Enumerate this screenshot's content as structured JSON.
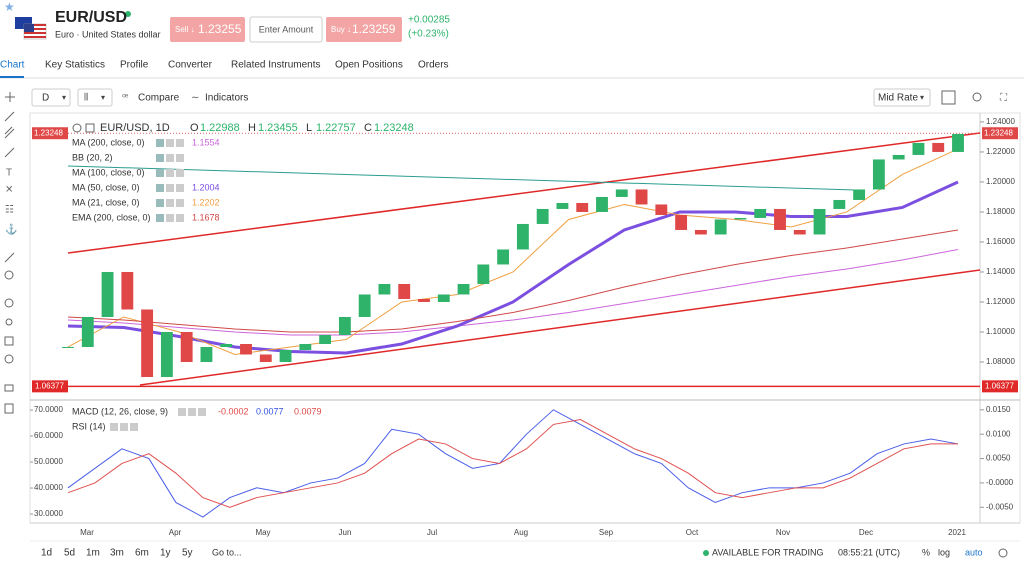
{
  "header": {
    "symbol": "EUR/USD",
    "name": "Euro · United States dollar",
    "sell_label": "Sell ↓",
    "sell_price": 1.23255,
    "amount_placeholder": "Enter Amount",
    "buy_label": "Buy ↓",
    "buy_price": 1.23259,
    "change": "+0.00285",
    "change_pct": "(+0.23%)"
  },
  "tabs": [
    "Chart",
    "Key Statistics",
    "Profile",
    "Converter",
    "Related Instruments",
    "Open Positions",
    "Orders"
  ],
  "toolbar": {
    "interval": "D",
    "compare": "Compare",
    "indicators": "Indicators",
    "price_type": "Mid Rate"
  },
  "footer": {
    "ranges": [
      "1d",
      "5d",
      "1m",
      "3m",
      "6m",
      "1y",
      "5y"
    ],
    "goto": "Go to...",
    "status": "AVAILABLE FOR TRADING",
    "time": "08:55:21 (UTC)",
    "percent": "%",
    "log": "log",
    "auto": "auto"
  },
  "chart_data": [
    {
      "type": "candlestick",
      "title": "EUR/USD, 1D",
      "ohlc": [
        {
          "label": "O",
          "value": 1.22988
        },
        {
          "label": "H",
          "value": 1.23455
        },
        {
          "label": "L",
          "value": 1.22757
        },
        {
          "label": "C",
          "value": 1.23248
        }
      ],
      "last_price": 1.23248,
      "level": 1.06377,
      "up_color": "#2fb36b",
      "down_color": "#e04848",
      "closes": [
        1.09,
        1.11,
        1.14,
        1.115,
        1.07,
        1.1,
        1.08,
        1.09,
        1.092,
        1.085,
        1.08,
        1.088,
        1.092,
        1.098,
        1.11,
        1.125,
        1.132,
        1.122,
        1.12,
        1.125,
        1.132,
        1.145,
        1.155,
        1.172,
        1.182,
        1.186,
        1.18,
        1.19,
        1.195,
        1.185,
        1.178,
        1.168,
        1.165,
        1.175,
        1.176,
        1.182,
        1.168,
        1.165,
        1.182,
        1.188,
        1.195,
        1.215,
        1.218,
        1.226,
        1.22,
        1.232
      ],
      "indicators": [
        {
          "name": "MA (200, close, 0)",
          "value": 1.1554,
          "color": "#cc66dd",
          "values": [
            1.108,
            1.106,
            1.103,
            1.1,
            1.098,
            1.098,
            1.1,
            1.104,
            1.108,
            1.113,
            1.119,
            1.125,
            1.131,
            1.137,
            1.142,
            1.148,
            1.155
          ]
        },
        {
          "name": "BB (20, 2)"
        },
        {
          "name": "MA (100, close, 0)"
        },
        {
          "name": "MA (50, close, 0)",
          "value": 1.2004,
          "color": "#7b4fe0",
          "values": [
            1.104,
            1.103,
            1.097,
            1.09,
            1.087,
            1.086,
            1.092,
            1.104,
            1.12,
            1.145,
            1.168,
            1.18,
            1.18,
            1.177,
            1.177,
            1.183,
            1.2
          ]
        },
        {
          "name": "MA (21, close, 0)",
          "value": 1.2202,
          "color": "#f0a040",
          "values": [
            1.09,
            1.11,
            1.1,
            1.085,
            1.09,
            1.095,
            1.12,
            1.125,
            1.14,
            1.175,
            1.185,
            1.178,
            1.175,
            1.17,
            1.18,
            1.205,
            1.222
          ]
        },
        {
          "name": "EMA (200, close, 0)",
          "value": 1.1678,
          "color": "#d04848",
          "values": [
            1.11,
            1.108,
            1.105,
            1.102,
            1.1,
            1.1,
            1.102,
            1.107,
            1.113,
            1.121,
            1.13,
            1.138,
            1.145,
            1.151,
            1.156,
            1.162,
            1.168
          ]
        }
      ],
      "x_labels": [
        "Mar",
        "Apr",
        "May",
        "Jun",
        "Jul",
        "Aug",
        "Sep",
        "Oct",
        "Nov",
        "Dec",
        "2021"
      ],
      "ylim": [
        1.056,
        1.2453
      ],
      "yticks": [
        {
          "value": 1.24,
          "label": "1.24000"
        },
        {
          "value": 1.22,
          "label": "1.22000"
        },
        {
          "value": 1.2,
          "label": "1.20000"
        },
        {
          "value": 1.18,
          "label": "1.18000"
        },
        {
          "value": 1.16,
          "label": "1.16000"
        },
        {
          "value": 1.14,
          "label": "1.14000"
        },
        {
          "value": 1.12,
          "label": "1.12000"
        },
        {
          "value": 1.1,
          "label": "1.10000"
        },
        {
          "value": 1.08,
          "label": "1.08000"
        }
      ]
    },
    {
      "type": "line",
      "indicators": [
        {
          "name": "MACD (12, 26, close, 9)",
          "values_shown": [
            {
              "value": -0.0002,
              "color": "#e04848"
            },
            {
              "value": 0.0077,
              "color": "#3355dd"
            },
            {
              "value": 0.0079,
              "color": "#e04848"
            }
          ]
        },
        {
          "name": "RSI (14)"
        }
      ],
      "series": [
        {
          "color": "#4a5ee8",
          "axis": "y2",
          "values": [
            -0.001,
            0.003,
            0.007,
            0.005,
            -0.004,
            -0.007,
            -0.003,
            -0.001,
            -0.002,
            0.0,
            0.001,
            0.004,
            0.011,
            0.01,
            0.006,
            0.003,
            0.004,
            0.01,
            0.015,
            0.012,
            0.009,
            0.006,
            0.004,
            -0.001,
            -0.004,
            -0.002,
            -0.001,
            -0.001,
            0.0,
            0.002,
            0.006,
            0.008,
            0.009,
            0.008
          ]
        },
        {
          "color": "#e05050",
          "axis": "y2",
          "values": [
            -0.002,
            0.0,
            0.004,
            0.006,
            0.002,
            -0.003,
            -0.005,
            -0.003,
            -0.002,
            -0.001,
            0.0,
            0.002,
            0.006,
            0.009,
            0.008,
            0.005,
            0.004,
            0.007,
            0.012,
            0.013,
            0.01,
            0.007,
            0.005,
            0.002,
            -0.002,
            -0.003,
            -0.002,
            -0.001,
            -0.001,
            0.001,
            0.004,
            0.007,
            0.008,
            0.008
          ]
        }
      ],
      "ylim": [
        27.7,
        73.1
      ],
      "yticks": [
        {
          "value": 70,
          "label": "70.0000"
        },
        {
          "value": 60,
          "label": "60.0000"
        },
        {
          "value": 50,
          "label": "50.0000"
        },
        {
          "value": 40,
          "label": "40.0000"
        },
        {
          "value": 30,
          "label": "30.0000"
        }
      ],
      "y2lim": [
        -0.0076,
        0.0166
      ],
      "y2ticks": [
        {
          "value": 0.015,
          "label": "0.0150"
        },
        {
          "value": 0.01,
          "label": "0.0100"
        },
        {
          "value": 0.005,
          "label": "0.0050"
        },
        {
          "value": 0,
          "label": "-0.0000"
        },
        {
          "value": -0.005,
          "label": "-0.0050"
        }
      ]
    }
  ]
}
